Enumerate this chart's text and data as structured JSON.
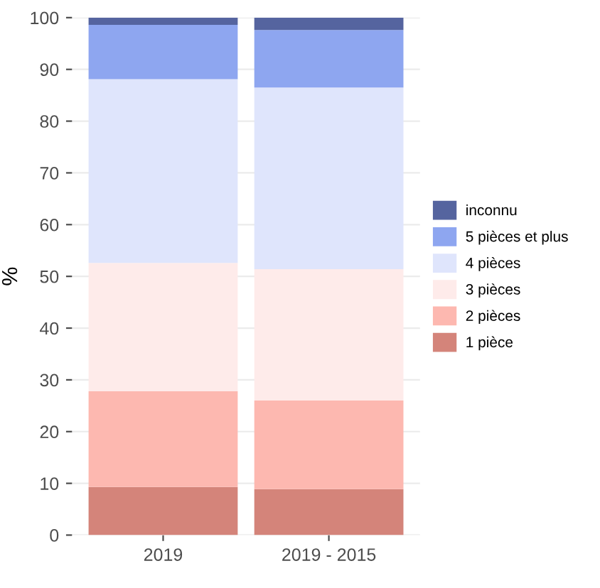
{
  "chart_data": {
    "type": "bar",
    "stacked": true,
    "ylabel": "%",
    "categories": [
      "2019",
      "2019 - 2015"
    ],
    "series": [
      {
        "name": "1 pièce",
        "color": "#d4847a",
        "values": [
          9.3,
          8.9
        ]
      },
      {
        "name": "2 pièces",
        "color": "#fdb8b0",
        "values": [
          18.5,
          17.1
        ]
      },
      {
        "name": "3 pièces",
        "color": "#feebea",
        "values": [
          24.8,
          25.4
        ]
      },
      {
        "name": "4 pièces",
        "color": "#dfe5fc",
        "values": [
          35.5,
          35.1
        ]
      },
      {
        "name": "5 pièces et plus",
        "color": "#8ea6f0",
        "values": [
          10.5,
          11.1
        ]
      },
      {
        "name": "inconnu",
        "color": "#55649f",
        "values": [
          1.4,
          2.4
        ]
      }
    ],
    "ylim": [
      0,
      100
    ],
    "yticks": [
      0,
      10,
      20,
      30,
      40,
      50,
      60,
      70,
      80,
      90,
      100
    ],
    "grid": "y",
    "legend": "right"
  }
}
